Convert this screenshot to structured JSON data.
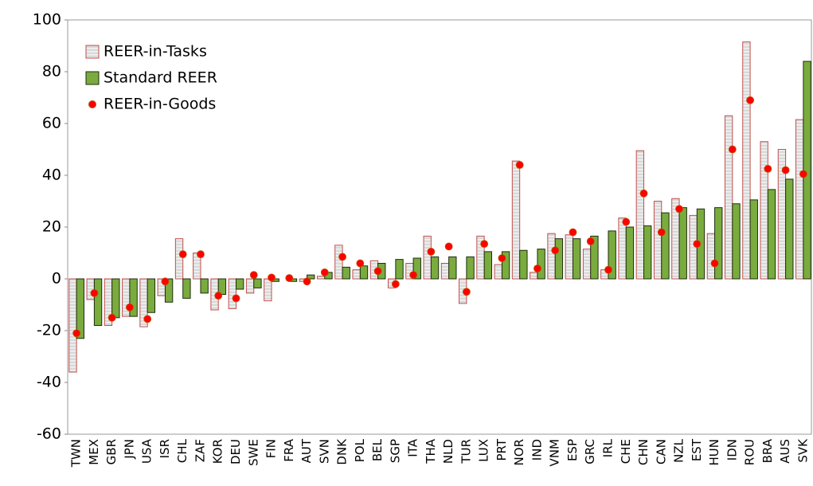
{
  "chart_data": {
    "type": "bar",
    "categories": [
      "TWN",
      "MEX",
      "GBR",
      "JPN",
      "USA",
      "ISR",
      "CHL",
      "ZAF",
      "KOR",
      "DEU",
      "SWE",
      "FIN",
      "FRA",
      "AUT",
      "SVN",
      "DNK",
      "POL",
      "BEL",
      "SGP",
      "ITA",
      "THA",
      "NLD",
      "TUR",
      "LUX",
      "PRT",
      "NOR",
      "IND",
      "VNM",
      "ESP",
      "GRC",
      "IRL",
      "CHE",
      "CHN",
      "CAN",
      "NZL",
      "EST",
      "HUN",
      "IDN",
      "ROU",
      "BRA",
      "AUS",
      "SVK"
    ],
    "series": [
      {
        "name": "REER-in-Tasks",
        "color": "#d9d9d9",
        "border": "#c0504d",
        "kind": "bar",
        "values": [
          -36,
          -8,
          -18,
          -14.5,
          -18.5,
          -6.5,
          15.5,
          10,
          -12,
          -11.5,
          -5.5,
          -8.5,
          0,
          -1,
          1,
          13,
          3.5,
          7,
          -3.5,
          6,
          16.5,
          6,
          -9.5,
          16.5,
          5.5,
          45.5,
          2.5,
          17.5,
          17,
          11.5,
          3.5,
          23.5,
          49.5,
          30,
          31,
          24.5,
          17.5,
          63,
          91.5,
          53,
          50,
          61.5
        ]
      },
      {
        "name": "Standard REER",
        "color": "#7aab3e",
        "border": "#1f2d0f",
        "kind": "bar",
        "values": [
          -23,
          -18,
          -15,
          -14.5,
          -13,
          -9,
          -7.5,
          -5.5,
          -6,
          -4,
          -3.5,
          -1,
          -1,
          1.5,
          2.5,
          4.5,
          5,
          6,
          7.5,
          8,
          8.5,
          8.5,
          8.5,
          10.5,
          10.5,
          11,
          11.5,
          15.5,
          15.5,
          16.5,
          18.5,
          20,
          20.5,
          25.5,
          27.5,
          27,
          27.5,
          29,
          30.5,
          34.5,
          38.5,
          84
        ]
      },
      {
        "name": "REER-in-Goods",
        "color": "#ff0000",
        "border": "#c05000",
        "kind": "dot",
        "values": [
          -21,
          -5.5,
          -15,
          -11,
          -15.5,
          -1,
          9.5,
          9.5,
          -6.5,
          -7.5,
          1.5,
          0.5,
          0.3,
          -1,
          2.5,
          8.5,
          6,
          3,
          -2,
          1.5,
          10.5,
          12.5,
          -5,
          13.5,
          8,
          44,
          4,
          11,
          18,
          14.5,
          3.5,
          22,
          33,
          18,
          27,
          13.5,
          6,
          50,
          69,
          42.5,
          42,
          40.5
        ]
      }
    ],
    "ylim": [
      -60,
      100
    ],
    "yticks": [
      -60,
      -40,
      -20,
      0,
      20,
      40,
      60,
      80,
      100
    ],
    "legend": "upper left"
  }
}
